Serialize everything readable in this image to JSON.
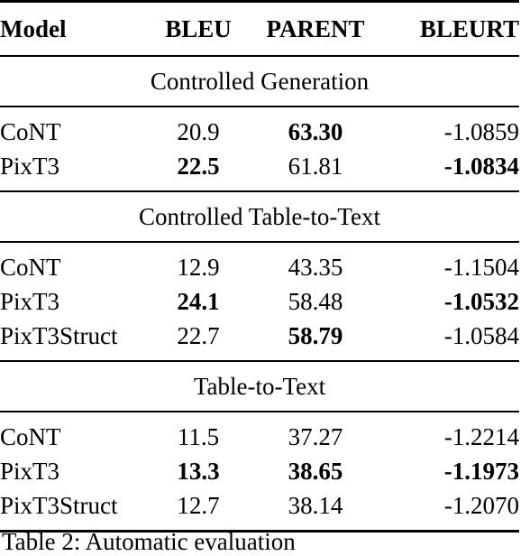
{
  "headers": {
    "model": "Model",
    "bleu": "BLEU",
    "parent": "PARENT",
    "bleurt": "BLEURT"
  },
  "sections": [
    {
      "title": "Controlled Generation",
      "rows": [
        {
          "model": "CoNT",
          "bleu": "20.9",
          "parent": "63.30",
          "bleurt": "-1.0859",
          "bold": [
            "parent"
          ]
        },
        {
          "model": "PixT3",
          "bleu": "22.5",
          "parent": "61.81",
          "bleurt": "-1.0834",
          "bold": [
            "bleu",
            "bleurt"
          ]
        }
      ]
    },
    {
      "title": "Controlled Table-to-Text",
      "rows": [
        {
          "model": "CoNT",
          "bleu": "12.9",
          "parent": "43.35",
          "bleurt": "-1.1504",
          "bold": []
        },
        {
          "model": "PixT3",
          "bleu": "24.1",
          "parent": "58.48",
          "bleurt": "-1.0532",
          "bold": [
            "bleu",
            "bleurt"
          ]
        },
        {
          "model": "PixT3Struct",
          "bleu": "22.7",
          "parent": "58.79",
          "bleurt": "-1.0584",
          "bold": [
            "parent"
          ]
        }
      ]
    },
    {
      "title": "Table-to-Text",
      "rows": [
        {
          "model": "CoNT",
          "bleu": "11.5",
          "parent": "37.27",
          "bleurt": "-1.2214",
          "bold": []
        },
        {
          "model": "PixT3",
          "bleu": "13.3",
          "parent": "38.65",
          "bleurt": "-1.1973",
          "bold": [
            "bleu",
            "parent",
            "bleurt"
          ]
        },
        {
          "model": "PixT3Struct",
          "bleu": "12.7",
          "parent": "38.14",
          "bleurt": "-1.2070",
          "bold": []
        }
      ]
    }
  ],
  "caption": "Table 2: Automatic evaluation"
}
